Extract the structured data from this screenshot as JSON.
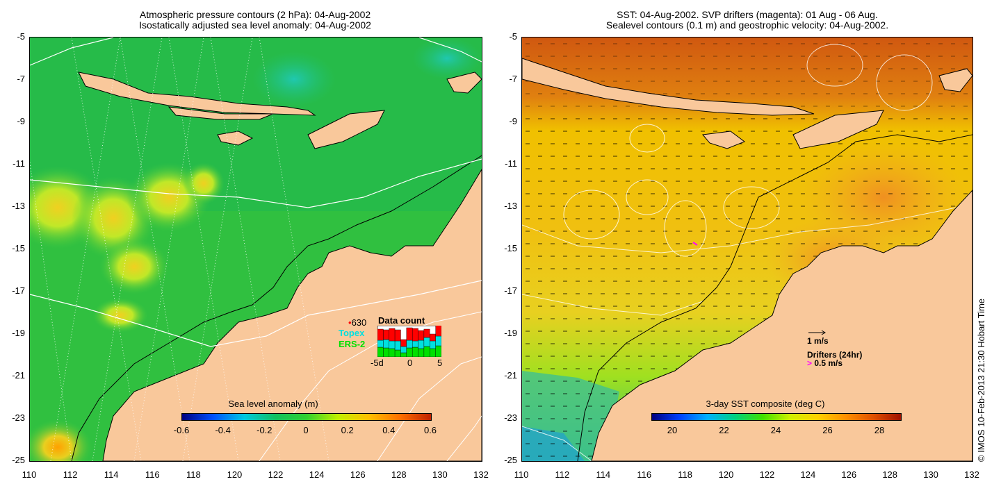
{
  "left_map": {
    "title_line1": "Atmospheric pressure contours (2 hPa): 04-Aug-2002",
    "title_line2": "Isostatically adjusted sea level anomaly: 04-Aug-2002",
    "y_ticks": [
      "-5",
      "-7",
      "-9",
      "-11",
      "-13",
      "-15",
      "-17",
      "-19",
      "-21",
      "-23",
      "-25"
    ],
    "x_ticks": [
      "110",
      "112",
      "114",
      "116",
      "118",
      "120",
      "122",
      "124",
      "126",
      "128",
      "130",
      "132"
    ],
    "colorbar_title": "Sea level anomaly (m)",
    "colorbar_ticks": [
      "-0.6",
      "-0.4",
      "-0.2",
      "0",
      "0.2",
      "0.4",
      "0.6"
    ],
    "colorbar_colors": [
      "#00007f",
      "#0050ff",
      "#00c8e0",
      "#10c060",
      "#30d030",
      "#c0f000",
      "#ffc000",
      "#ff7000",
      "#c02000"
    ],
    "inset": {
      "marker_value": "630",
      "sat1": "Topex",
      "sat2": "ERS-2",
      "title": "Data count",
      "x_ticks": [
        "-5d",
        "0",
        "5"
      ],
      "sat1_color": "#00e0e0",
      "sat2_color": "#00e000",
      "bar_color": "#ff0000"
    }
  },
  "right_map": {
    "title_line1": "SST: 04-Aug-2002. SVP drifters (magenta): 01 Aug - 06 Aug.",
    "title_line2": "Sealevel contours (0.1 m) and geostrophic velocity: 04-Aug-2002.",
    "y_ticks": [
      "-5",
      "-7",
      "-9",
      "-11",
      "-13",
      "-15",
      "-17",
      "-19",
      "-21",
      "-23",
      "-25"
    ],
    "x_ticks": [
      "110",
      "112",
      "114",
      "116",
      "118",
      "120",
      "122",
      "124",
      "126",
      "128",
      "130",
      "132"
    ],
    "colorbar_title": "3-day SST composite (deg C)",
    "colorbar_ticks": [
      "20",
      "22",
      "24",
      "26",
      "28"
    ],
    "colorbar_colors": [
      "#00007f",
      "#0040ff",
      "#00b0ff",
      "#00d080",
      "#40e000",
      "#d0f000",
      "#ffd000",
      "#ff9000",
      "#e05000",
      "#a01000"
    ],
    "velocity_scale": "1 m/s",
    "drifters_label": "Drifters (24hr)",
    "drifter_scale": "0.5 m/s",
    "drifter_color": "#ff00ff"
  },
  "copyright": "© IMOS 10-Feb-2013 21:30 Hobart Time",
  "land_color": "#f9c89b"
}
